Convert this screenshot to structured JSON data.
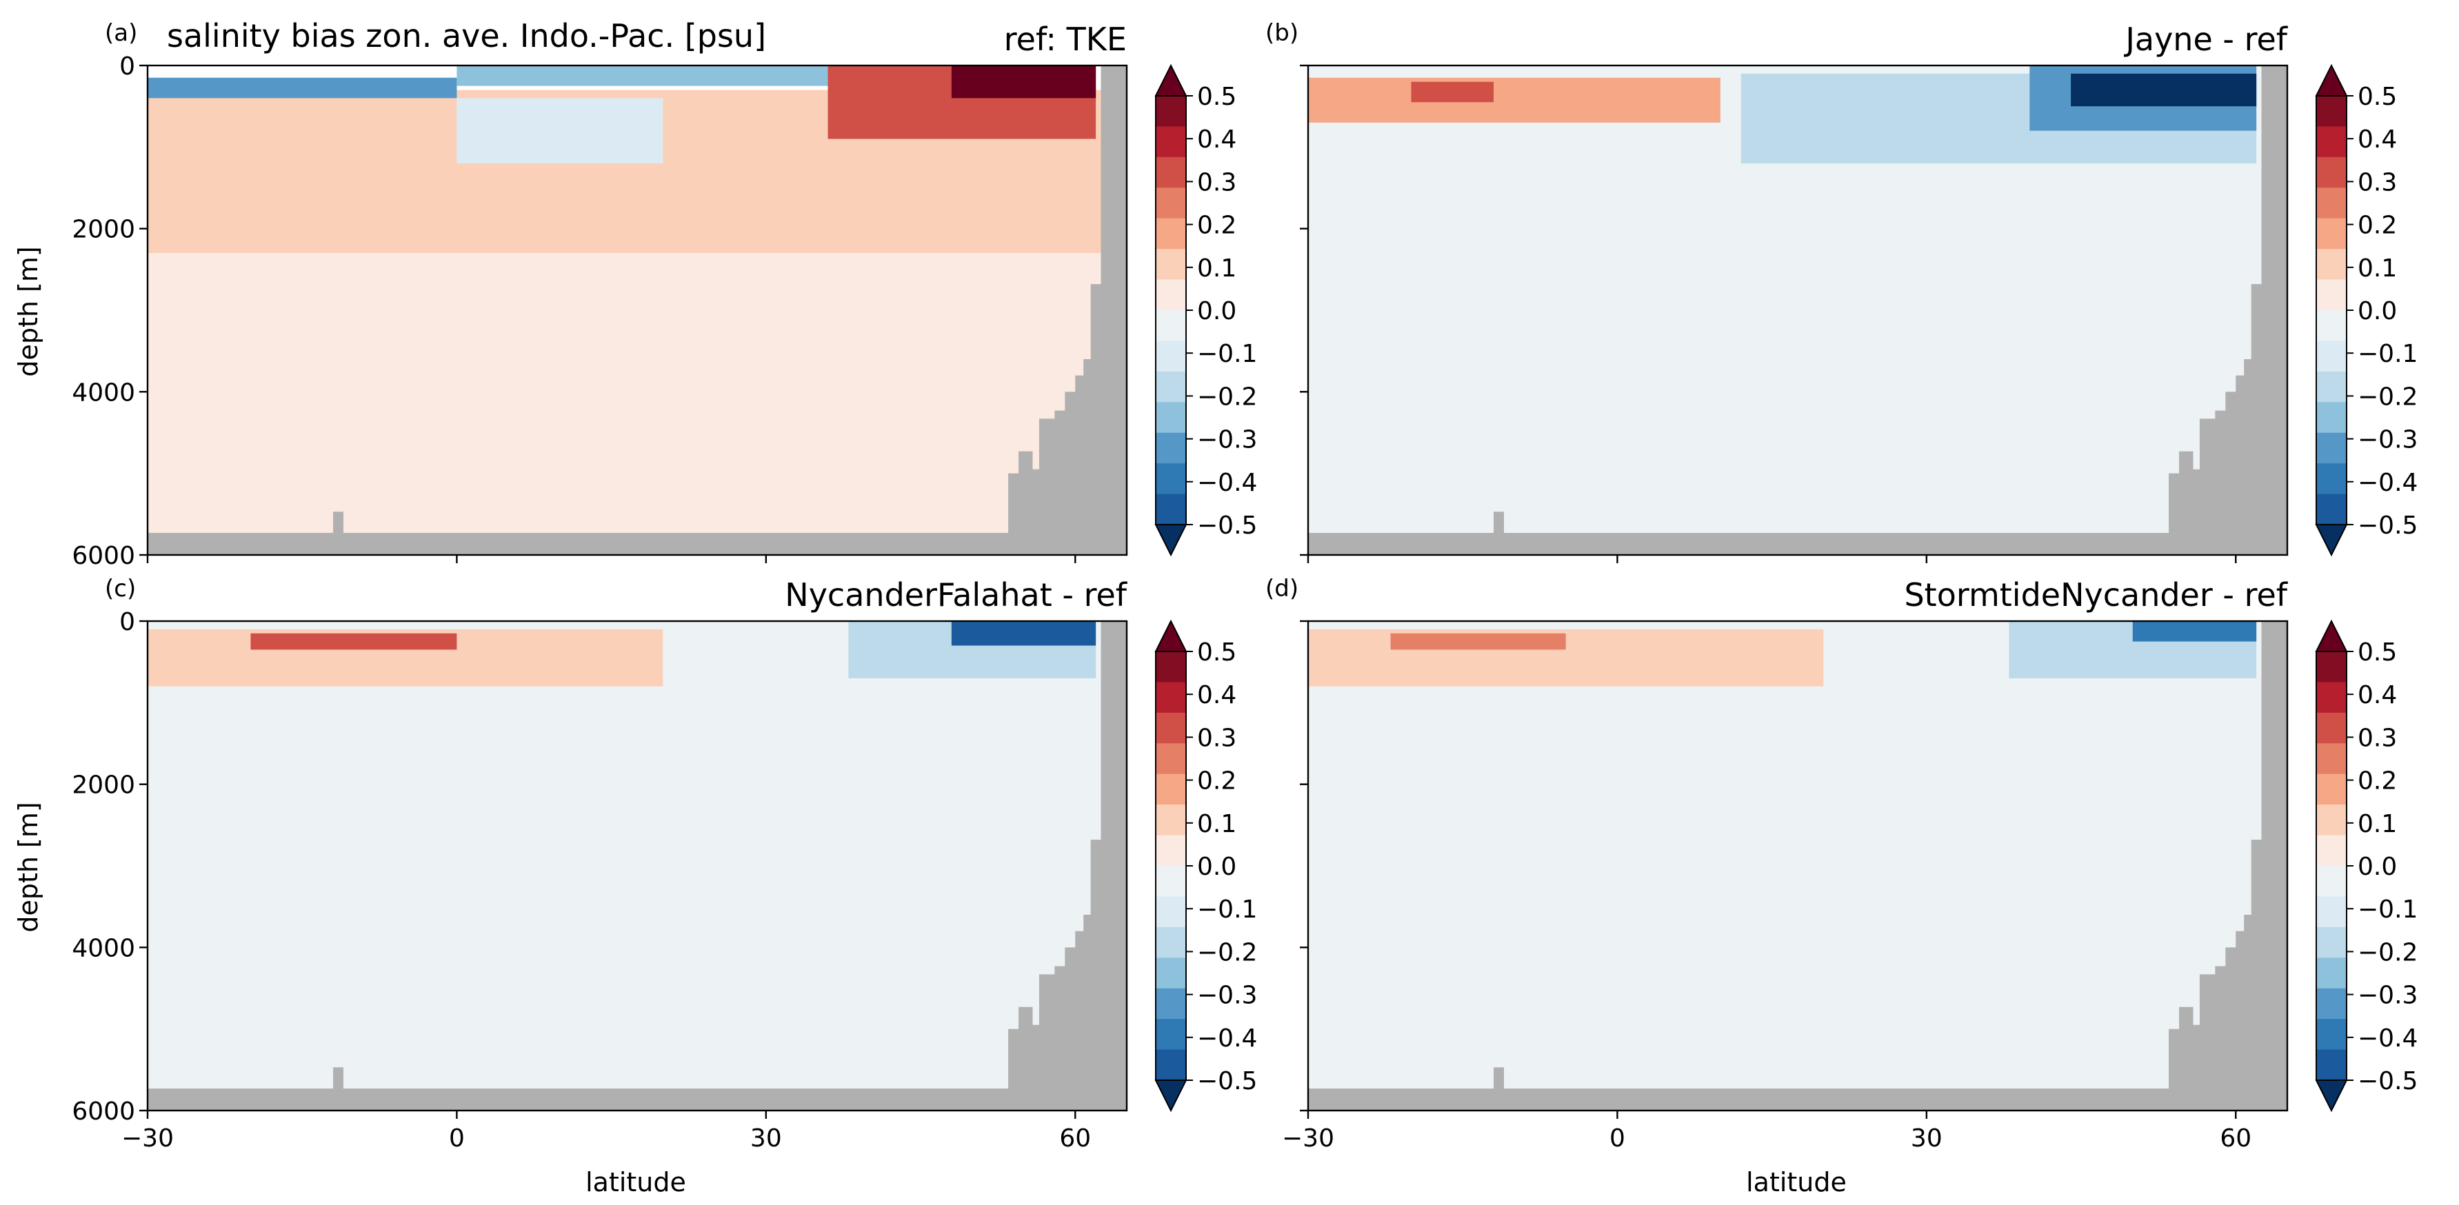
{
  "figure": {
    "main_title": "salinity bias zon. ave. Indo.-Pac. [psu]",
    "xlabel": "latitude",
    "ylabel": "depth [m]"
  },
  "chart_data": [
    {
      "type": "heatmap",
      "letter": "(a)",
      "title_right": "ref: TKE",
      "xticks": [
        -30,
        0,
        30,
        60
      ],
      "yticks": [
        0,
        2000,
        4000,
        6000
      ],
      "xlim": [
        -30,
        65
      ],
      "ylim": [
        6000,
        0
      ],
      "colorbar_ticks": [
        0.5,
        0.4,
        0.3,
        0.2,
        0.1,
        0.0,
        -0.1,
        -0.2,
        -0.3,
        -0.4,
        -0.5
      ],
      "colorbar_range": [
        -0.5,
        0.5
      ],
      "colorbar_extend": "both",
      "field_summary": [
        {
          "lat": [
            -30,
            65
          ],
          "depth": [
            300,
            2300
          ],
          "bias": 0.08
        },
        {
          "lat": [
            -30,
            0
          ],
          "depth": [
            150,
            400
          ],
          "bias": -0.3
        },
        {
          "lat": [
            0,
            36
          ],
          "depth": [
            0,
            250
          ],
          "bias": -0.25
        },
        {
          "lat": [
            0,
            20
          ],
          "depth": [
            400,
            1200
          ],
          "bias": -0.1
        },
        {
          "lat": [
            36,
            62
          ],
          "depth": [
            0,
            900
          ],
          "bias": 0.25
        },
        {
          "lat": [
            48,
            62
          ],
          "depth": [
            0,
            400
          ],
          "bias": 0.45
        },
        {
          "lat": [
            -30,
            65
          ],
          "depth": [
            2300,
            6000
          ],
          "bias": 0.03
        }
      ]
    },
    {
      "type": "heatmap",
      "letter": "(b)",
      "title_right": "Jayne - ref",
      "xticks": [
        -30,
        0,
        30,
        60
      ],
      "yticks": [
        0,
        2000,
        4000,
        6000
      ],
      "xlim": [
        -30,
        65
      ],
      "ylim": [
        6000,
        0
      ],
      "colorbar_ticks": [
        0.5,
        0.4,
        0.3,
        0.2,
        0.1,
        0.0,
        -0.1,
        -0.2,
        -0.3,
        -0.4,
        -0.5
      ],
      "colorbar_range": [
        -0.5,
        0.5
      ],
      "colorbar_extend": "both",
      "field_summary": [
        {
          "lat": [
            -30,
            65
          ],
          "depth": [
            0,
            6000
          ],
          "bias": -0.02
        },
        {
          "lat": [
            -30,
            10
          ],
          "depth": [
            150,
            700
          ],
          "bias": 0.15
        },
        {
          "lat": [
            -20,
            -12
          ],
          "depth": [
            200,
            450
          ],
          "bias": 0.3
        },
        {
          "lat": [
            12,
            62
          ],
          "depth": [
            100,
            1200
          ],
          "bias": -0.15
        },
        {
          "lat": [
            40,
            62
          ],
          "depth": [
            0,
            800
          ],
          "bias": -0.3
        },
        {
          "lat": [
            44,
            62
          ],
          "depth": [
            100,
            500
          ],
          "bias": -0.5
        }
      ]
    },
    {
      "type": "heatmap",
      "letter": "(c)",
      "title_right": "NycanderFalahat - ref",
      "xticks": [
        -30,
        0,
        30,
        60
      ],
      "yticks": [
        0,
        2000,
        4000,
        6000
      ],
      "xlim": [
        -30,
        65
      ],
      "ylim": [
        6000,
        0
      ],
      "colorbar_ticks": [
        0.5,
        0.4,
        0.3,
        0.2,
        0.1,
        0.0,
        -0.1,
        -0.2,
        -0.3,
        -0.4,
        -0.5
      ],
      "colorbar_range": [
        -0.5,
        0.5
      ],
      "colorbar_extend": "both",
      "field_summary": [
        {
          "lat": [
            -30,
            65
          ],
          "depth": [
            0,
            6000
          ],
          "bias": -0.02
        },
        {
          "lat": [
            -30,
            20
          ],
          "depth": [
            100,
            800
          ],
          "bias": 0.1
        },
        {
          "lat": [
            -20,
            0
          ],
          "depth": [
            150,
            350
          ],
          "bias": 0.25
        },
        {
          "lat": [
            38,
            62
          ],
          "depth": [
            0,
            700
          ],
          "bias": -0.15
        },
        {
          "lat": [
            48,
            62
          ],
          "depth": [
            0,
            300
          ],
          "bias": -0.4
        }
      ]
    },
    {
      "type": "heatmap",
      "letter": "(d)",
      "title_right": "StormtideNycander - ref",
      "xticks": [
        -30,
        0,
        30,
        60
      ],
      "yticks": [
        0,
        2000,
        4000,
        6000
      ],
      "xlim": [
        -30,
        65
      ],
      "ylim": [
        6000,
        0
      ],
      "colorbar_ticks": [
        0.5,
        0.4,
        0.3,
        0.2,
        0.1,
        0.0,
        -0.1,
        -0.2,
        -0.3,
        -0.4,
        -0.5
      ],
      "colorbar_range": [
        -0.5,
        0.5
      ],
      "colorbar_extend": "both",
      "field_summary": [
        {
          "lat": [
            -30,
            65
          ],
          "depth": [
            0,
            6000
          ],
          "bias": -0.02
        },
        {
          "lat": [
            -30,
            20
          ],
          "depth": [
            100,
            800
          ],
          "bias": 0.1
        },
        {
          "lat": [
            -22,
            -5
          ],
          "depth": [
            150,
            350
          ],
          "bias": 0.22
        },
        {
          "lat": [
            38,
            62
          ],
          "depth": [
            0,
            700
          ],
          "bias": -0.15
        },
        {
          "lat": [
            50,
            62
          ],
          "depth": [
            0,
            250
          ],
          "bias": -0.35
        }
      ]
    }
  ],
  "colormap": {
    "name": "RdBu_r",
    "colors": [
      "#053061",
      "#1b5a9c",
      "#2f79b5",
      "#5598c7",
      "#8ec1dc",
      "#bcdaea",
      "#dcebf3",
      "#edf2f5",
      "#fbeae1",
      "#fbd0b9",
      "#f6a886",
      "#e58067",
      "#d05048",
      "#b51f2e",
      "#830e23",
      "#67001f"
    ]
  },
  "land_color": "#b0b0b0"
}
